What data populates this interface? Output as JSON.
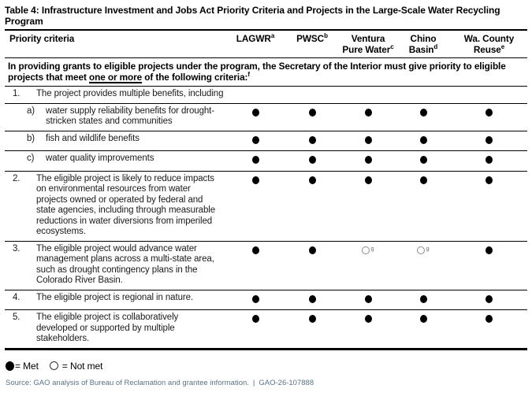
{
  "title": "Table 4: Infrastructure Investment and Jobs Act Priority Criteria and Projects in the Large-Scale Water Recycling Program",
  "table": {
    "criteria_header": "Priority criteria",
    "columns": [
      {
        "label": "LAGWR",
        "footnote": "a"
      },
      {
        "label": "PWSC",
        "footnote": "b"
      },
      {
        "label": "Ventura Pure Water",
        "footnote": "c"
      },
      {
        "label": "Chino Basin",
        "footnote": "d"
      },
      {
        "label": "Wa. County Reuse",
        "footnote": "e"
      }
    ],
    "intro": {
      "before": "In providing grants to eligible projects under the program, the Secretary of the Interior must give priority to eligible projects that meet ",
      "underlined": "one or more",
      "after": " of the following criteria:",
      "footnote": "f"
    },
    "rows": [
      {
        "marker": "1.",
        "level": 1,
        "text": "The project provides multiple benefits, including",
        "cells": null
      },
      {
        "marker": "a)",
        "level": 2,
        "text": "water supply reliability benefits for drought-stricken states and communities",
        "cells": [
          {
            "state": "met"
          },
          {
            "state": "met"
          },
          {
            "state": "met"
          },
          {
            "state": "met"
          },
          {
            "state": "met"
          }
        ]
      },
      {
        "marker": "b)",
        "level": 2,
        "text": "fish and wildlife benefits",
        "cells": [
          {
            "state": "met"
          },
          {
            "state": "met"
          },
          {
            "state": "met"
          },
          {
            "state": "met"
          },
          {
            "state": "met"
          }
        ]
      },
      {
        "marker": "c)",
        "level": 2,
        "text": "water quality improvements",
        "cells": [
          {
            "state": "met"
          },
          {
            "state": "met"
          },
          {
            "state": "met"
          },
          {
            "state": "met"
          },
          {
            "state": "met"
          }
        ]
      },
      {
        "marker": "2.",
        "level": 1,
        "text": "The eligible project is likely to reduce impacts on environmental resources from water projects owned or operated by federal and state agencies, including through measurable reductions in water diversions from imperiled ecosystems.",
        "cells": [
          {
            "state": "met"
          },
          {
            "state": "met"
          },
          {
            "state": "met"
          },
          {
            "state": "met"
          },
          {
            "state": "met"
          }
        ]
      },
      {
        "marker": "3.",
        "level": 1,
        "text": "The eligible project would advance water management plans across a multi-state area, such as drought contingency plans in the Colorado River Basin.",
        "cells": [
          {
            "state": "met"
          },
          {
            "state": "met"
          },
          {
            "state": "not_met",
            "footnote": "g"
          },
          {
            "state": "not_met",
            "footnote": "g"
          },
          {
            "state": "met"
          }
        ]
      },
      {
        "marker": "4.",
        "level": 1,
        "text": "The eligible project is regional in nature.",
        "cells": [
          {
            "state": "met"
          },
          {
            "state": "met"
          },
          {
            "state": "met"
          },
          {
            "state": "met"
          },
          {
            "state": "met"
          }
        ]
      },
      {
        "marker": "5.",
        "level": 1,
        "text": "The eligible project is collaboratively developed or supported by multiple stakeholders.",
        "cells": [
          {
            "state": "met"
          },
          {
            "state": "met"
          },
          {
            "state": "met"
          },
          {
            "state": "met"
          },
          {
            "state": "met"
          }
        ]
      }
    ]
  },
  "legend": {
    "met_label": "= Met",
    "not_met_label": "= Not met"
  },
  "source": {
    "text": "Source: GAO analysis of Bureau of Reclamation and grantee information.",
    "separator": "|",
    "report_number": "GAO-26-107888"
  },
  "colors": {
    "text": "#1a1a1a",
    "rule": "#000000",
    "source_text": "#5a7282",
    "open_circle": "#8c8c8c"
  }
}
